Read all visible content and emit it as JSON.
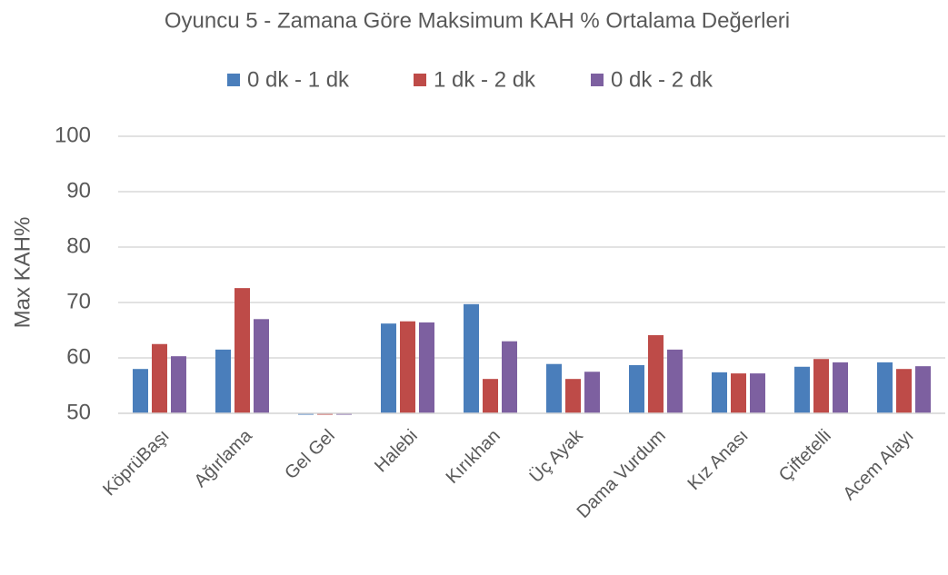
{
  "chart_data": {
    "type": "bar",
    "title": "Oyuncu 5 - Zamana Göre Maksimum KAH % Ortalama Değerleri",
    "y_label": "Max KAH%",
    "categories": [
      "KöprüBaşı",
      "Ağırlama",
      "Gel Gel",
      "Halebi",
      "Kırıkhan",
      "Üç Ayak",
      "Dama Vurdum",
      "Kız Anası",
      "Çiftetelli",
      "Acem Alayı"
    ],
    "series": [
      {
        "name": "0 dk - 1 dk",
        "color": "#4a7ebb",
        "values": [
          58.0,
          61.5,
          50,
          66.2,
          69.7,
          58.9,
          58.7,
          57.4,
          58.4,
          59.2
        ]
      },
      {
        "name": "1 dk - 2 dk",
        "color": "#be4b48",
        "values": [
          62.5,
          72.6,
          50,
          66.6,
          56.2,
          56.2,
          64.1,
          57.2,
          59.8,
          58.0
        ]
      },
      {
        "name": "0 dk - 2 dk",
        "color": "#7d60a0",
        "values": [
          60.3,
          67.0,
          50,
          66.4,
          63.0,
          57.5,
          61.5,
          57.2,
          59.2,
          58.5
        ]
      }
    ],
    "ylim": [
      50,
      100
    ],
    "yticks": [
      50,
      60,
      70,
      80,
      90,
      100
    ],
    "grid": true
  }
}
